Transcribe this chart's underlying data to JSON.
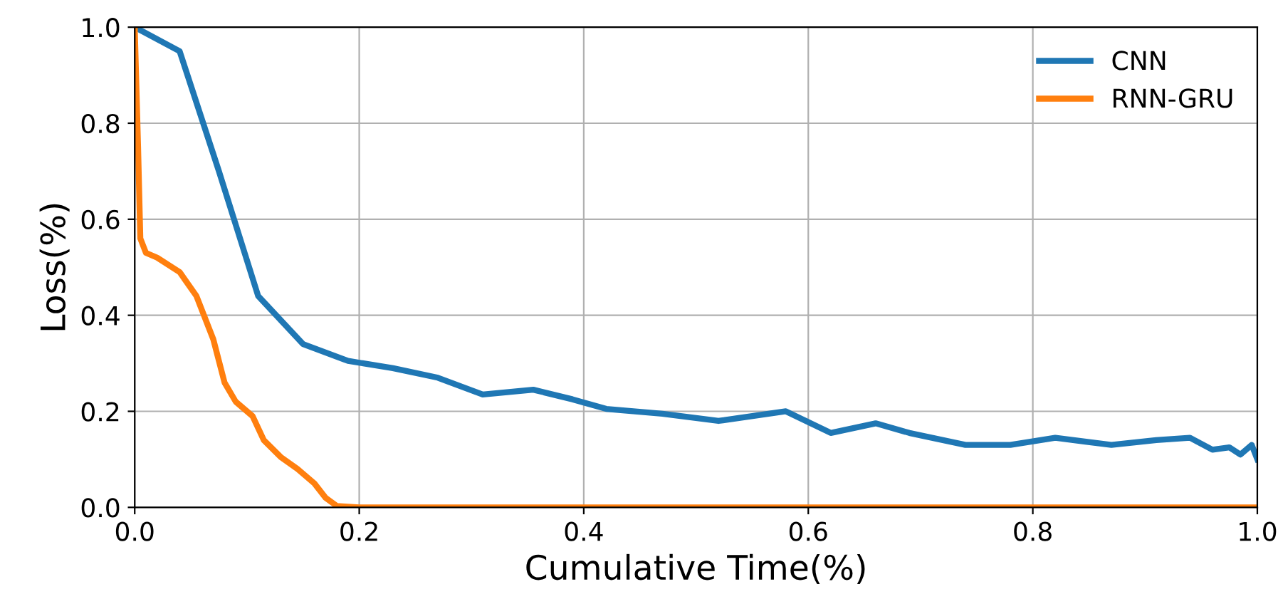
{
  "chart_data": {
    "type": "line",
    "xlabel": "Cumulative Time(%)",
    "ylabel": "Loss(%)",
    "xlim": [
      0.0,
      1.0
    ],
    "ylim": [
      0.0,
      1.0
    ],
    "xticks": [
      {
        "value": 0,
        "label": "0.0"
      },
      0.2,
      0.4,
      0.6,
      0.8,
      {
        "value": 1,
        "label": "1.0"
      }
    ],
    "yticks": [
      {
        "value": 0,
        "label": "0.0"
      },
      0.2,
      0.4,
      0.6,
      0.8,
      {
        "value": 1,
        "label": "1.0"
      }
    ],
    "grid": true,
    "legend": "top right",
    "line_style": "solid",
    "series": [
      {
        "name": "CNN",
        "color": "#1f77b4",
        "x": [
          0,
          0.04,
          0.075,
          0.11,
          0.15,
          0.19,
          0.23,
          0.27,
          0.31,
          0.355,
          0.39,
          0.42,
          0.47,
          0.52,
          0.58,
          0.62,
          0.66,
          0.69,
          0.74,
          0.78,
          0.82,
          0.87,
          0.91,
          0.94,
          0.96,
          0.975,
          0.985,
          0.995,
          1.0
        ],
        "values": [
          1.0,
          0.95,
          0.7,
          0.44,
          0.34,
          0.305,
          0.29,
          0.27,
          0.235,
          0.245,
          0.225,
          0.205,
          0.195,
          0.18,
          0.2,
          0.155,
          0.175,
          0.155,
          0.13,
          0.13,
          0.145,
          0.13,
          0.14,
          0.145,
          0.12,
          0.125,
          0.11,
          0.13,
          0.1
        ]
      },
      {
        "name": "RNN-GRU",
        "color": "#ff7f0e",
        "x": [
          0,
          0.003,
          0.005,
          0.01,
          0.02,
          0.04,
          0.055,
          0.07,
          0.08,
          0.09,
          0.105,
          0.115,
          0.13,
          0.145,
          0.16,
          0.17,
          0.18,
          0.2,
          1.0
        ],
        "values": [
          1.0,
          0.75,
          0.56,
          0.53,
          0.52,
          0.49,
          0.44,
          0.35,
          0.26,
          0.22,
          0.19,
          0.14,
          0.105,
          0.08,
          0.05,
          0.02,
          0.003,
          0.0,
          0.0
        ]
      }
    ]
  }
}
